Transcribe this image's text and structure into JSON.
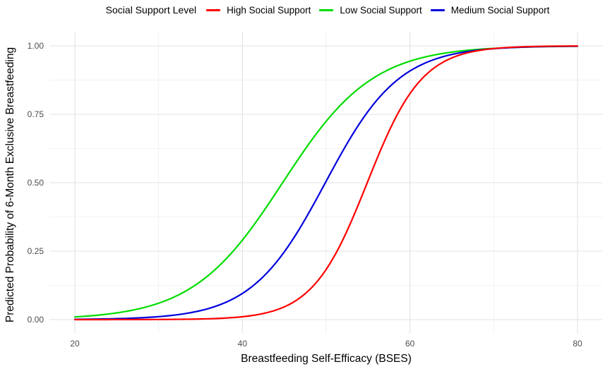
{
  "legend": {
    "title": "Social Support Level",
    "items": [
      {
        "label": "High Social Support",
        "color": "#ff0000"
      },
      {
        "label": "Low Social Support",
        "color": "#00dc00"
      },
      {
        "label": "Medium Social Support",
        "color": "#0000dd"
      }
    ]
  },
  "axes": {
    "x": {
      "label": "Breastfeeding Self-Efficacy (BSES)",
      "range": [
        20,
        80
      ],
      "tick_values": [
        20,
        40,
        60,
        80
      ],
      "tick_labels": [
        "20",
        "40",
        "60",
        "80"
      ],
      "minor_breaks": [
        30,
        50,
        70
      ]
    },
    "y": {
      "label": "Predicted Probability of 6-Month Exclusive Breastfeeding",
      "range": [
        0,
        1
      ],
      "tick_values": [
        0,
        0.25,
        0.5,
        0.75,
        1
      ],
      "tick_labels": [
        "0.00",
        "0.25",
        "0.50",
        "0.75",
        "1.00"
      ],
      "minor_breaks": [
        0.125,
        0.375,
        0.625,
        0.875
      ]
    }
  },
  "chart_data": {
    "type": "line",
    "title": "",
    "xlabel": "Breastfeeding Self-Efficacy (BSES)",
    "ylabel": "Predicted Probability of 6-Month Exclusive Breastfeeding",
    "xlim": [
      20,
      80
    ],
    "ylim": [
      0,
      1
    ],
    "grid": "on",
    "legend_position": "top",
    "legend_title": "Social Support Level",
    "x_sample": [
      20,
      25,
      30,
      35,
      40,
      45,
      50,
      55,
      60,
      65,
      70,
      75,
      80
    ],
    "series": [
      {
        "name": "High Social Support",
        "color": "#ff0000",
        "curve": "logistic",
        "model": {
          "midpoint_x0": 54.9,
          "slope_k": 0.305
        },
        "values": [
          0.0,
          0.0001,
          0.0005,
          0.0023,
          0.0105,
          0.0465,
          0.1832,
          0.5076,
          0.8258,
          0.9561,
          0.9901,
          0.9978,
          0.9995
        ]
      },
      {
        "name": "Low Social Support",
        "color": "#00dc00",
        "curve": "logistic",
        "model": {
          "midpoint_x0": 44.8,
          "slope_k": 0.186
        },
        "values": [
          0.0098,
          0.0245,
          0.0599,
          0.1391,
          0.2905,
          0.5092,
          0.7246,
          0.8696,
          0.9441,
          0.9772,
          0.9909,
          0.9964,
          0.9986
        ]
      },
      {
        "name": "Medium Social Support",
        "color": "#0000dd",
        "curve": "logistic",
        "model": {
          "midpoint_x0": 49.9,
          "slope_k": 0.227
        },
        "values": [
          0.0011,
          0.0035,
          0.0108,
          0.0329,
          0.0956,
          0.2475,
          0.5057,
          0.761,
          0.9083,
          0.9686,
          0.9897,
          0.9967,
          0.9989
        ]
      }
    ]
  }
}
